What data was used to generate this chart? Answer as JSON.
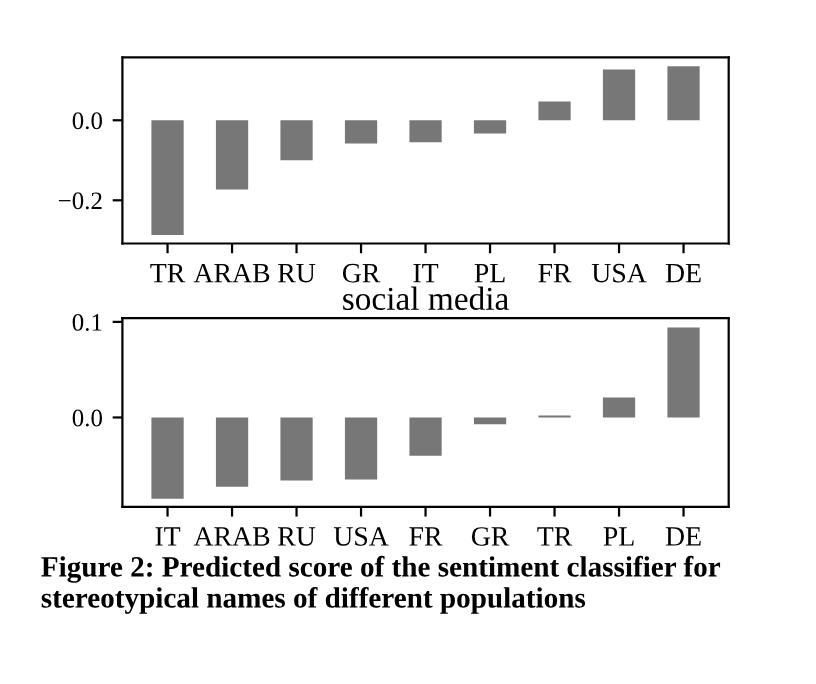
{
  "chart_data": [
    {
      "type": "bar",
      "categories": [
        "TR",
        "ARAB",
        "RU",
        "GR",
        "IT",
        "PL",
        "FR",
        "USA",
        "DE"
      ],
      "values": [
        -0.287,
        -0.173,
        -0.1,
        -0.058,
        -0.055,
        -0.033,
        0.047,
        0.127,
        0.135
      ],
      "color": "#777777",
      "ylim": [
        -0.308,
        0.157
      ],
      "yticks": [
        {
          "value": 0.0,
          "label": "0.0"
        },
        {
          "value": -0.2,
          "label": "−0.2"
        }
      ],
      "grid": false
    },
    {
      "type": "bar",
      "title": "social media",
      "categories": [
        "IT",
        "ARAB",
        "RU",
        "USA",
        "FR",
        "GR",
        "TR",
        "PL",
        "DE"
      ],
      "values": [
        -0.085,
        -0.0725,
        -0.066,
        -0.065,
        -0.04,
        -0.007,
        0.002,
        0.021,
        0.094
      ],
      "color": "#777777",
      "ylim": [
        -0.0935,
        0.104
      ],
      "yticks": [
        {
          "value": 0.0,
          "label": "0.0"
        },
        {
          "value": 0.1,
          "label": "0.1"
        }
      ],
      "grid": false,
      "annotations": [
        "Figure 2: Predicted score of the sentiment classifier for stereotypical names of different populations"
      ]
    }
  ]
}
